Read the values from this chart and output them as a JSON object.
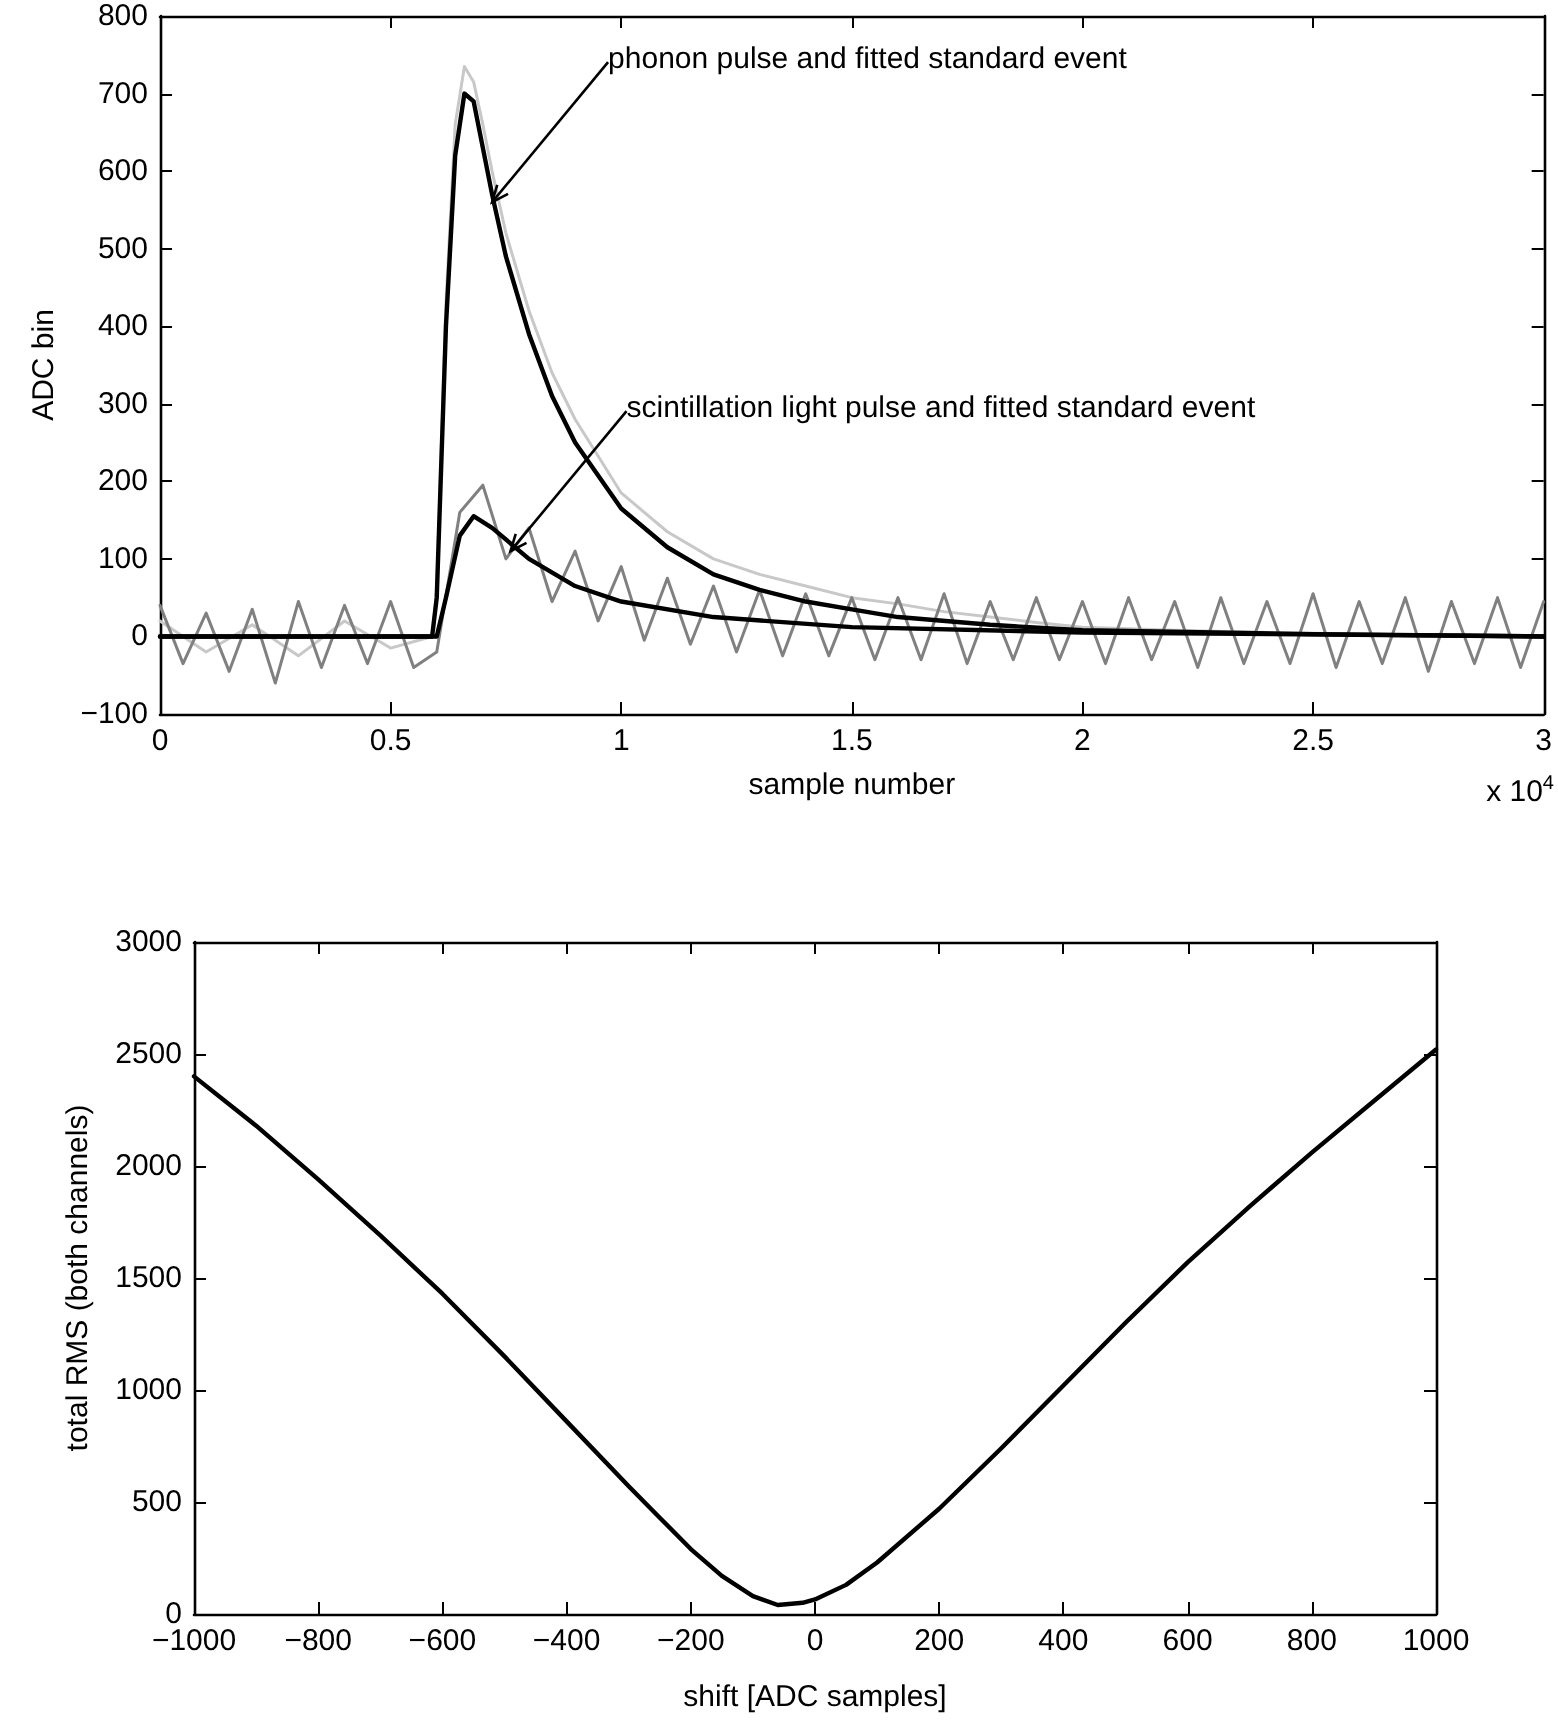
{
  "chart_data": [
    {
      "type": "line",
      "xlabel": "sample number",
      "ylabel": "ADC bin",
      "xlim": [
        0,
        3
      ],
      "xticks": [
        0,
        0.5,
        1,
        1.5,
        2,
        2.5,
        3
      ],
      "ylim": [
        -100,
        800
      ],
      "yticks": [
        -100,
        0,
        100,
        200,
        300,
        400,
        500,
        600,
        700,
        800
      ],
      "annotations": [
        "x 10$^{4}$",
        {
          "text": "phonon pulse and fitted standard event",
          "x": 0.72,
          "y": 560
        },
        {
          "text": "scintillation light pulse and fitted standard event",
          "x": 0.76,
          "y": 110
        }
      ],
      "series": [
        {
          "color": "#c8c8c8",
          "x": [
            0,
            0.1,
            0.2,
            0.3,
            0.4,
            0.5,
            0.59,
            0.6,
            0.62,
            0.64,
            0.66,
            0.68,
            0.7,
            0.72,
            0.75,
            0.8,
            0.85,
            0.9,
            1.0,
            1.1,
            1.2,
            1.3,
            1.4,
            1.5,
            1.6,
            1.7,
            1.8,
            1.9,
            2.0,
            2.2,
            2.4,
            2.6,
            2.8,
            3.0
          ],
          "values": [
            20,
            -20,
            15,
            -25,
            20,
            -15,
            0,
            60,
            430,
            660,
            735,
            715,
            660,
            600,
            520,
            420,
            340,
            280,
            185,
            135,
            100,
            80,
            65,
            50,
            42,
            32,
            25,
            18,
            12,
            8,
            5,
            3,
            2,
            0
          ]
        },
        {
          "color": "#808080",
          "x": [
            0,
            0.05,
            0.1,
            0.15,
            0.2,
            0.25,
            0.3,
            0.35,
            0.4,
            0.45,
            0.5,
            0.55,
            0.6,
            0.65,
            0.7,
            0.75,
            0.8,
            0.85,
            0.9,
            0.95,
            1.0,
            1.05,
            1.1,
            1.15,
            1.2,
            1.25,
            1.3,
            1.35,
            1.4,
            1.45,
            1.5,
            1.55,
            1.6,
            1.65,
            1.7,
            1.75,
            1.8,
            1.85,
            1.9,
            1.95,
            2.0,
            2.05,
            2.1,
            2.15,
            2.2,
            2.25,
            2.3,
            2.35,
            2.4,
            2.45,
            2.5,
            2.55,
            2.6,
            2.65,
            2.7,
            2.75,
            2.8,
            2.85,
            2.9,
            2.95,
            3.0
          ],
          "values": [
            40,
            -35,
            30,
            -45,
            35,
            -60,
            45,
            -40,
            40,
            -35,
            45,
            -40,
            -20,
            160,
            195,
            100,
            140,
            45,
            110,
            20,
            90,
            -5,
            75,
            -10,
            65,
            -20,
            60,
            -25,
            55,
            -25,
            50,
            -30,
            50,
            -30,
            55,
            -35,
            45,
            -30,
            50,
            -30,
            45,
            -35,
            50,
            -30,
            45,
            -40,
            50,
            -35,
            45,
            -35,
            55,
            -40,
            45,
            -35,
            50,
            -45,
            45,
            -35,
            50,
            -40,
            45
          ]
        },
        {
          "color": "#000000",
          "x": [
            0,
            0.59,
            0.6,
            0.62,
            0.64,
            0.66,
            0.68,
            0.7,
            0.72,
            0.75,
            0.8,
            0.85,
            0.9,
            1.0,
            1.1,
            1.2,
            1.3,
            1.4,
            1.5,
            1.6,
            1.8,
            2.0,
            2.5,
            3.0
          ],
          "values": [
            0,
            0,
            50,
            400,
            620,
            700,
            690,
            630,
            570,
            490,
            390,
            310,
            250,
            165,
            115,
            80,
            60,
            45,
            35,
            25,
            15,
            8,
            3,
            0
          ]
        },
        {
          "color": "#000000",
          "x": [
            0,
            0.6,
            0.62,
            0.65,
            0.68,
            0.72,
            0.8,
            0.9,
            1.0,
            1.2,
            1.5,
            2.0,
            3.0
          ],
          "values": [
            0,
            0,
            50,
            130,
            155,
            140,
            100,
            65,
            45,
            25,
            12,
            5,
            0
          ]
        }
      ]
    },
    {
      "type": "line",
      "xlabel": "shift [ADC samples]",
      "ylabel": "total RMS (both channels)",
      "xlim": [
        -1000,
        1000
      ],
      "xticks": [
        -1000,
        -800,
        -600,
        -400,
        -200,
        0,
        200,
        400,
        600,
        800,
        1000
      ],
      "ylim": [
        0,
        3000
      ],
      "yticks": [
        0,
        500,
        1000,
        1500,
        2000,
        2500,
        3000
      ],
      "series": [
        {
          "color": "#000000",
          "x": [
            -1000,
            -900,
            -800,
            -700,
            -600,
            -500,
            -400,
            -300,
            -250,
            -200,
            -150,
            -100,
            -60,
            -20,
            0,
            50,
            100,
            200,
            300,
            400,
            500,
            600,
            700,
            800,
            900,
            1000
          ],
          "values": [
            2400,
            2180,
            1940,
            1690,
            1430,
            1150,
            860,
            570,
            430,
            290,
            170,
            80,
            40,
            50,
            65,
            130,
            230,
            470,
            740,
            1020,
            1300,
            1570,
            1820,
            2060,
            2290,
            2520
          ]
        }
      ]
    }
  ]
}
